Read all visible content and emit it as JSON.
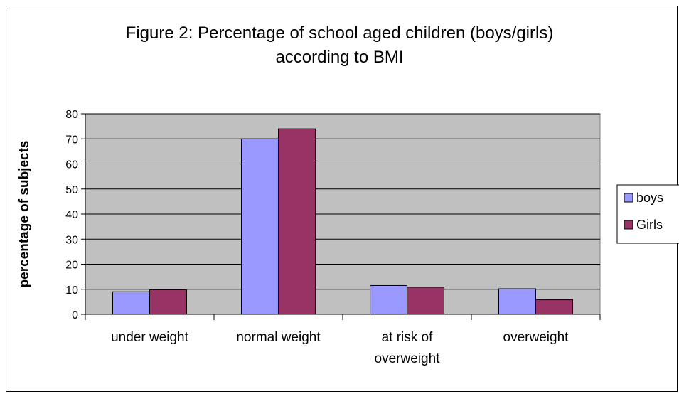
{
  "chart_data": {
    "type": "bar",
    "title": "Figure 2: Percentage of school aged children (boys/girls)",
    "title_line2": "according to BMI",
    "xlabel": "",
    "ylabel": "percentage of subjects",
    "ylim": [
      0,
      80
    ],
    "yticks": [
      0,
      10,
      20,
      30,
      40,
      50,
      60,
      70,
      80
    ],
    "grid": true,
    "legend_position": "right",
    "categories": [
      [
        "under weight"
      ],
      [
        "normal weight"
      ],
      [
        "at risk of",
        "overweight"
      ],
      [
        "overweight"
      ]
    ],
    "series": [
      {
        "name": "boys",
        "color": "#9999ff",
        "values": [
          9,
          70,
          11.5,
          10.2
        ]
      },
      {
        "name": "Girls",
        "color": "#993366",
        "values": [
          9.8,
          74,
          10.8,
          5.8
        ]
      }
    ],
    "plot_background": "#c0c0c0"
  }
}
